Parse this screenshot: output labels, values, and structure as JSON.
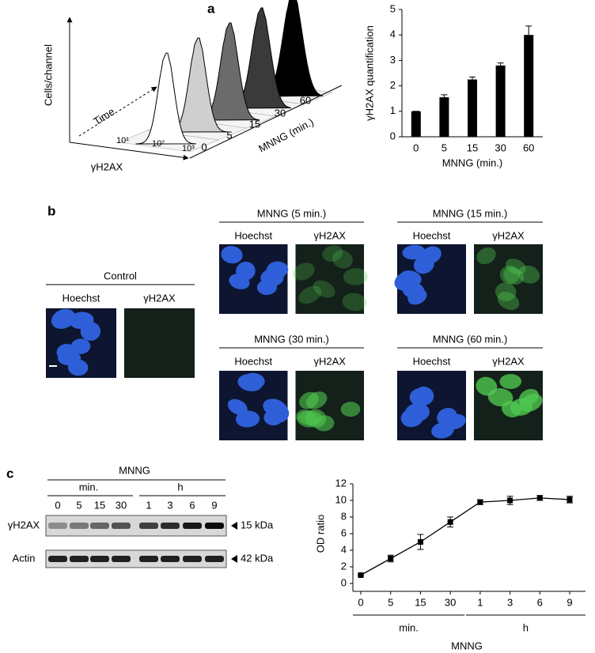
{
  "panel_labels": [
    "a",
    "b",
    "c"
  ],
  "flow_cytometry": {
    "y_label": "Cells/channel",
    "x_label": "γH2AX",
    "depth_label": "Time",
    "x_ticks": [
      "10¹",
      "10²",
      "10³"
    ],
    "z_label": "MNNG (min.)",
    "z_ticks": [
      "0",
      "5",
      "15",
      "30",
      "60"
    ]
  },
  "microscopy": {
    "control": {
      "title": "Control",
      "channels": [
        "Hoechst",
        "γH2AX"
      ]
    },
    "treatments": [
      {
        "title": "MNNG (5 min.)",
        "channels": [
          "Hoechst",
          "γH2AX"
        ]
      },
      {
        "title": "MNNG (15 min.)",
        "channels": [
          "Hoechst",
          "γH2AX"
        ]
      },
      {
        "title": "MNNG (30 min.)",
        "channels": [
          "Hoechst",
          "γH2AX"
        ]
      },
      {
        "title": "MNNG (60 min.)",
        "channels": [
          "Hoechst",
          "γH2AX"
        ]
      }
    ]
  },
  "western_blot": {
    "treatment": "MNNG",
    "groups": [
      "min.",
      "h"
    ],
    "lanes": [
      "0",
      "5",
      "15",
      "30",
      "1",
      "3",
      "6",
      "9"
    ],
    "rows": [
      {
        "label": "γH2AX",
        "marker": "15 kDa"
      },
      {
        "label": "Actin",
        "marker": "42 kDa"
      }
    ]
  },
  "chart_data": [
    {
      "type": "bar",
      "ylabel": "γH2AX quantification",
      "xlabel": "MNNG (min.)",
      "categories": [
        "0",
        "5",
        "15",
        "30",
        "60"
      ],
      "values": [
        1,
        1.55,
        2.25,
        2.8,
        4.0
      ],
      "errors": [
        0,
        0.1,
        0.1,
        0.1,
        0.35
      ],
      "color": "#000000",
      "ylim": [
        0,
        5
      ],
      "yticks": [
        0,
        1,
        2,
        3,
        4,
        5
      ]
    },
    {
      "type": "line",
      "ylabel": "OD ratio",
      "xlabel": "MNNG",
      "groups": [
        "min.",
        "h"
      ],
      "categories": [
        "0",
        "5",
        "15",
        "30",
        "1",
        "3",
        "6",
        "9"
      ],
      "values": [
        1,
        3,
        5,
        7.4,
        9.8,
        10,
        10.3,
        10.1
      ],
      "errors": [
        0.1,
        0.4,
        0.9,
        0.6,
        0.3,
        0.5,
        0.3,
        0.4
      ],
      "color": "#000000",
      "ylim": [
        0,
        12
      ],
      "yticks": [
        0,
        2,
        4,
        6,
        8,
        10,
        12
      ]
    }
  ]
}
